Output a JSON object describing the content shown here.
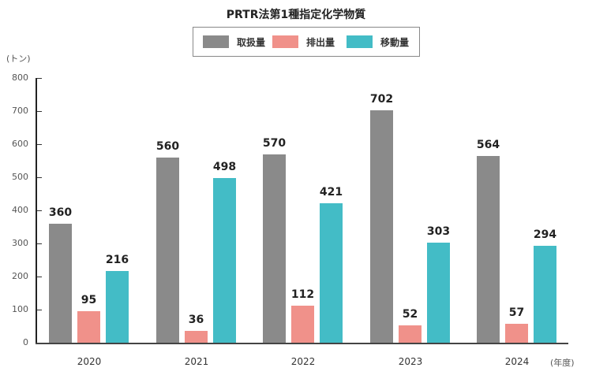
{
  "chart_data": {
    "type": "bar",
    "title": "PRTR法第1種指定化学物質",
    "xlabel": "(年度)",
    "ylabel": "(トン)",
    "categories": [
      "2020",
      "2021",
      "2022",
      "2023",
      "2024"
    ],
    "series": [
      {
        "name": "取扱量",
        "color": "#8a8a8a",
        "values": [
          360,
          560,
          570,
          702,
          564
        ]
      },
      {
        "name": "排出量",
        "color": "#f0918a",
        "values": [
          95,
          36,
          112,
          52,
          57
        ]
      },
      {
        "name": "移動量",
        "color": "#43bcc6",
        "values": [
          216,
          498,
          421,
          303,
          294
        ]
      }
    ],
    "ylim": [
      0,
      800
    ],
    "yticks": [
      0,
      100,
      200,
      300,
      400,
      500,
      600,
      700,
      800
    ],
    "grid": false,
    "legend_position": "top"
  },
  "title": "PRTR法第1種指定化学物質",
  "legend": [
    {
      "label": "取扱量",
      "color": "#8a8a8a"
    },
    {
      "label": "排出量",
      "color": "#f0918a"
    },
    {
      "label": "移動量",
      "color": "#43bcc6"
    }
  ],
  "y_unit": "(トン)",
  "x_unit": "(年度)",
  "yticks": [
    "0",
    "100",
    "200",
    "300",
    "400",
    "500",
    "600",
    "700",
    "800"
  ],
  "groups": [
    {
      "year": "2020",
      "bars": [
        {
          "label": "360"
        },
        {
          "label": "95"
        },
        {
          "label": "216"
        }
      ]
    },
    {
      "year": "2021",
      "bars": [
        {
          "label": "560"
        },
        {
          "label": "36"
        },
        {
          "label": "498"
        }
      ]
    },
    {
      "year": "2022",
      "bars": [
        {
          "label": "570"
        },
        {
          "label": "112"
        },
        {
          "label": "421"
        }
      ]
    },
    {
      "year": "2023",
      "bars": [
        {
          "label": "702"
        },
        {
          "label": "52"
        },
        {
          "label": "303"
        }
      ]
    },
    {
      "year": "2024",
      "bars": [
        {
          "label": "564"
        },
        {
          "label": "57"
        },
        {
          "label": "294"
        }
      ]
    }
  ]
}
